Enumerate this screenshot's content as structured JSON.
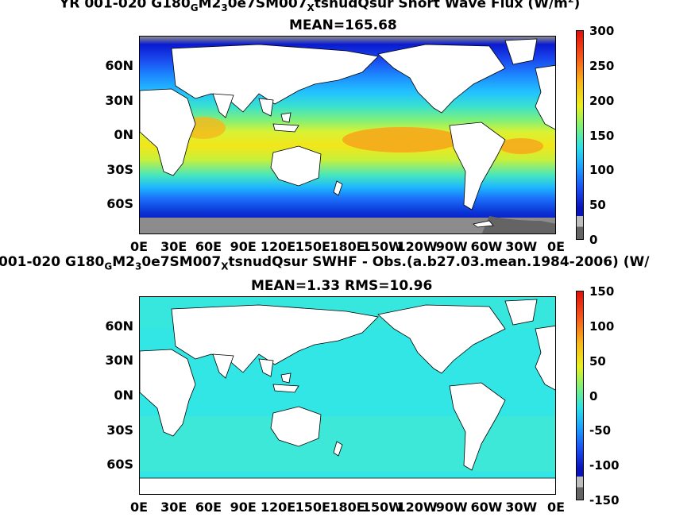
{
  "top": {
    "title": "YR 001-020 G180_GM2_30e7SM007_Xtsnud Qsur  Short Wave Flux (W/m^2)",
    "title_parts": [
      "YR 001-020 G180",
      "G",
      "M2",
      "3",
      "0e7SM007",
      "X",
      "tsnudQsur  Short Wave Flux (W/m",
      "2",
      ")"
    ],
    "stat": "MEAN=165.68",
    "colorbar_ticks": [
      "300",
      "250",
      "200",
      "150",
      "100",
      "50",
      "0"
    ]
  },
  "bottom": {
    "title_parts": [
      "001-020 G180",
      "G",
      "M2",
      "3",
      "0e7SM007",
      "X",
      "tsnudQsur SWHF - Obs.(a.b27.03.mean.1984-2006) (W/"
    ],
    "stat": "MEAN=1.33 RMS=10.96",
    "colorbar_ticks": [
      "150",
      "100",
      "50",
      "0",
      "-50",
      "-100",
      "-150"
    ]
  },
  "lat_labels": [
    "60N",
    "30N",
    "0N",
    "30S",
    "60S"
  ],
  "lon_labels": [
    "0E",
    "30E",
    "60E",
    "90E",
    "120E",
    "150E",
    "180E",
    "150W",
    "120W",
    "90W",
    "60W",
    "30W",
    "0E"
  ],
  "colors": {
    "land": "#ffffff",
    "missing_grey": "#8c8c8c",
    "ice_grey": "#646464",
    "anomaly_cyan": "#33e6e6"
  }
}
